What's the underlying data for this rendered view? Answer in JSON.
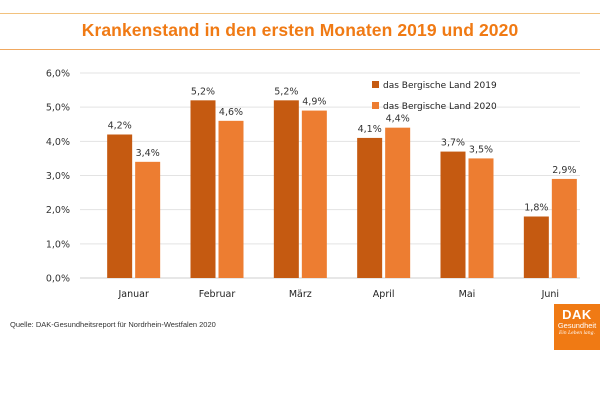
{
  "title": "Krankenstand in den ersten Monaten 2019 und 2020",
  "source": "Quelle: DAK-Gesundheitsreport für Nordrhein-Westfalen 2020",
  "logo": {
    "name": "DAK",
    "subtitle": "Gesundheit",
    "slogan": "Ein Leben lang."
  },
  "colors": {
    "title": "#f07a14",
    "series_2019": "#c55a11",
    "series_2020": "#ed7d31",
    "grid": "#e3e3e3"
  },
  "chart_data": {
    "type": "bar",
    "title": "Krankenstand in den ersten Monaten 2019 und 2020",
    "xlabel": "",
    "ylabel": "",
    "categories": [
      "Januar",
      "Februar",
      "März",
      "April",
      "Mai",
      "Juni"
    ],
    "series": [
      {
        "name": "das Bergische Land 2019",
        "values": [
          4.2,
          5.2,
          5.2,
          4.1,
          3.7,
          1.8
        ],
        "labels": [
          "4,2%",
          "5,2%",
          "5,2%",
          "4,1%",
          "3,7%",
          "1,8%"
        ]
      },
      {
        "name": "das Bergische Land 2020",
        "values": [
          3.4,
          4.6,
          4.9,
          4.4,
          3.5,
          2.9
        ],
        "labels": [
          "3,4%",
          "4,6%",
          "4,9%",
          "4,4%",
          "3,5%",
          "2,9%"
        ]
      }
    ],
    "ylim": [
      0,
      6
    ],
    "yticks": [
      0,
      1,
      2,
      3,
      4,
      5,
      6
    ],
    "ytick_labels": [
      "0,0%",
      "1,0%",
      "2,0%",
      "3,0%",
      "4,0%",
      "5,0%",
      "6,0%"
    ],
    "grid": true,
    "legend_position": "top-right"
  }
}
